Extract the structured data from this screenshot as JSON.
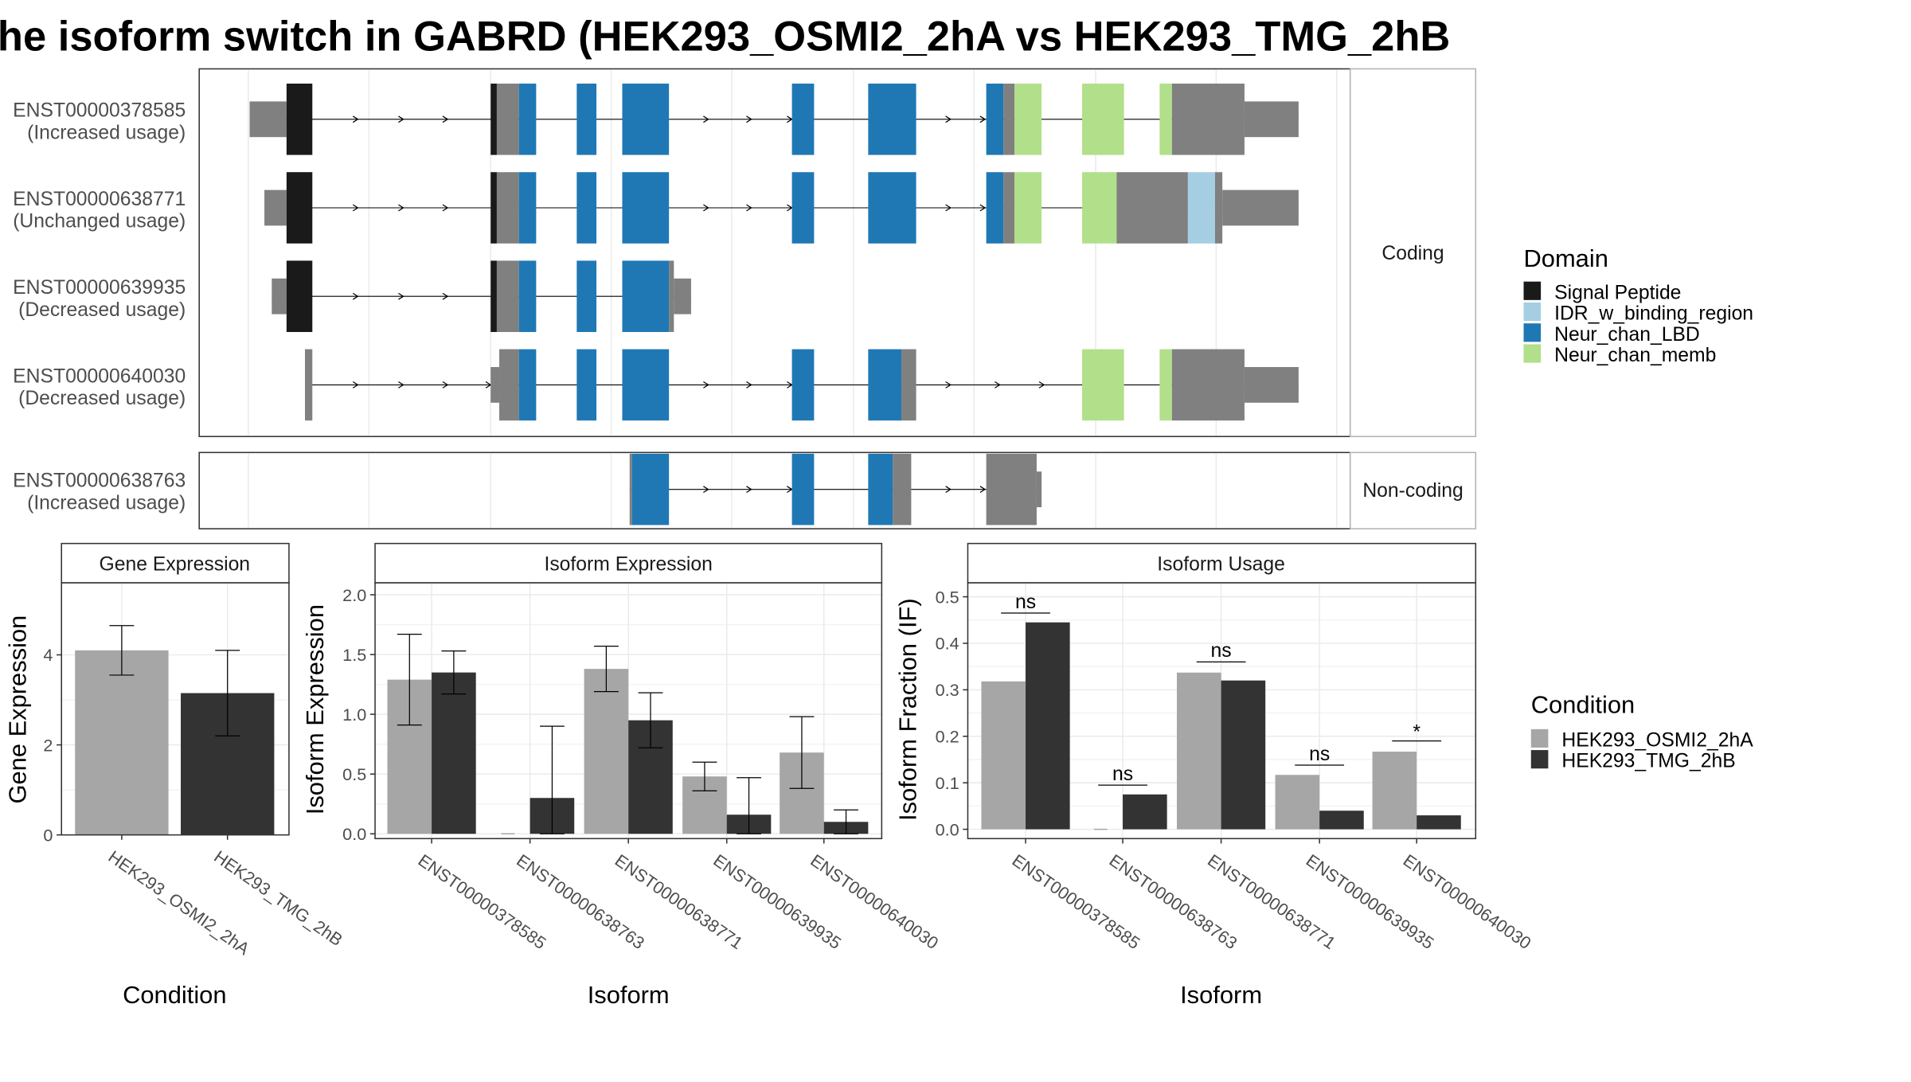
{
  "title": "he isoform switch in GABRD (HEK293_OSMI2_2hA vs HEK293_TMG_2hB",
  "colors": {
    "utr": "#808080",
    "signal_peptide": "#1a1a1a",
    "idr": "#a6cee3",
    "lbd": "#1f78b4",
    "memb": "#b2df8a",
    "cond_a": "#a6a6a6",
    "cond_b": "#333333"
  },
  "structure": {
    "coding_strip": "Coding",
    "noncoding_strip": "Non-coding",
    "transcripts": [
      {
        "id": "ENST00000378585",
        "usage": "(Increased usage)",
        "group": "coding"
      },
      {
        "id": "ENST00000638771",
        "usage": "(Unchanged usage)",
        "group": "coding"
      },
      {
        "id": "ENST00000639935",
        "usage": "(Decreased usage)",
        "group": "coding"
      },
      {
        "id": "ENST00000640030",
        "usage": "(Decreased usage)",
        "group": "coding"
      },
      {
        "id": "ENST00000638763",
        "usage": "(Increased usage)",
        "group": "noncoding"
      }
    ]
  },
  "legends": {
    "domain_title": "Domain",
    "domain_items": [
      {
        "label": "Signal Peptide",
        "color": "#1a1a1a"
      },
      {
        "label": "IDR_w_binding_region",
        "color": "#a6cee3"
      },
      {
        "label": "Neur_chan_LBD",
        "color": "#1f78b4"
      },
      {
        "label": "Neur_chan_memb",
        "color": "#b2df8a"
      }
    ],
    "condition_title": "Condition",
    "condition_items": [
      {
        "label": "HEK293_OSMI2_2hA",
        "color": "#a6a6a6"
      },
      {
        "label": "HEK293_TMG_2hB",
        "color": "#333333"
      }
    ]
  },
  "chart_data": [
    {
      "type": "bar",
      "title": "Gene Expression",
      "xlabel": "Condition",
      "ylabel": "Gene Expression",
      "categories": [
        "HEK293_OSMI2_2hA",
        "HEK293_TMG_2hB"
      ],
      "values": [
        4.1,
        3.15
      ],
      "error_low": [
        3.55,
        2.2
      ],
      "error_high": [
        4.65,
        4.1
      ],
      "ylim": [
        0,
        5.6
      ],
      "yticks": [
        0,
        2,
        4
      ],
      "grid": true
    },
    {
      "type": "bar",
      "title": "Isoform Expression",
      "xlabel": "Isoform",
      "ylabel": "Isoform Expression",
      "categories": [
        "ENST00000378585",
        "ENST00000638763",
        "ENST00000638771",
        "ENST00000639935",
        "ENST00000640030"
      ],
      "series": [
        {
          "name": "HEK293_OSMI2_2hA",
          "values": [
            1.29,
            0,
            1.38,
            0.48,
            0.68
          ],
          "error_low": [
            0.91,
            0,
            1.19,
            0.36,
            0.38
          ],
          "error_high": [
            1.67,
            0,
            1.57,
            0.6,
            0.98
          ]
        },
        {
          "name": "HEK293_TMG_2hB",
          "values": [
            1.35,
            0.3,
            0.95,
            0.16,
            0.1
          ],
          "error_low": [
            1.17,
            0,
            0.72,
            0,
            0
          ],
          "error_high": [
            1.53,
            0.9,
            1.18,
            0.47,
            0.2
          ]
        }
      ],
      "ylim": [
        -0.04,
        2.1
      ],
      "yticks": [
        0.0,
        0.5,
        1.0,
        1.5,
        2.0
      ],
      "grid": true
    },
    {
      "type": "bar",
      "title": "Isoform Usage",
      "xlabel": "Isoform",
      "ylabel": "Isoform Fraction (IF)",
      "categories": [
        "ENST00000378585",
        "ENST00000638763",
        "ENST00000638771",
        "ENST00000639935",
        "ENST00000640030"
      ],
      "series": [
        {
          "name": "HEK293_OSMI2_2hA",
          "values": [
            0.318,
            0,
            0.337,
            0.117,
            0.167
          ]
        },
        {
          "name": "HEK293_TMG_2hB",
          "values": [
            0.445,
            0.075,
            0.32,
            0.04,
            0.03
          ]
        }
      ],
      "significance": [
        "ns",
        "ns",
        "ns",
        "ns",
        "*"
      ],
      "significance_y": [
        0.465,
        0.095,
        0.36,
        0.138,
        0.19
      ],
      "ylim": [
        -0.02,
        0.53
      ],
      "yticks": [
        0.0,
        0.1,
        0.2,
        0.3,
        0.4,
        0.5
      ],
      "grid": true
    }
  ]
}
